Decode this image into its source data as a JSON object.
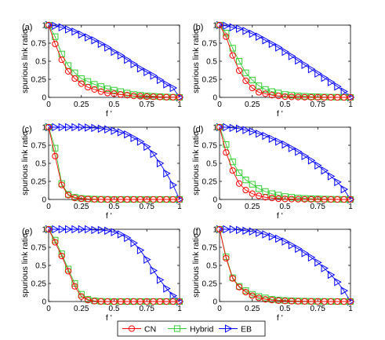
{
  "chart_data": {
    "type": "line",
    "x_axis_label": "f '",
    "y_axis_label": "spurious link ratio",
    "xlim": [
      0,
      1
    ],
    "ylim": [
      0,
      1
    ],
    "x_ticks": [
      "0",
      "0.25",
      "0.5",
      "0.75",
      "1"
    ],
    "y_ticks": [
      "0",
      "0.25",
      "0.5",
      "0.75",
      "1"
    ],
    "grid": false,
    "legend": {
      "placement": "bottom-center",
      "entries": [
        {
          "name": "CN",
          "color": "#ff0000",
          "marker": "circle"
        },
        {
          "name": "Hybrid",
          "color": "#33cc33",
          "marker": "square"
        },
        {
          "name": "EB",
          "color": "#0000ff",
          "marker": "triangle-right"
        }
      ]
    },
    "panels": [
      {
        "label": "(a)",
        "x": [
          0,
          0.05,
          0.1,
          0.15,
          0.2,
          0.25,
          0.3,
          0.35,
          0.4,
          0.45,
          0.5,
          0.55,
          0.6,
          0.65,
          0.7,
          0.75,
          0.8,
          0.85,
          0.9,
          0.95,
          1
        ],
        "series": [
          {
            "name": "CN",
            "values": [
              1,
              0.74,
              0.52,
              0.36,
              0.26,
              0.19,
              0.14,
              0.11,
              0.08,
              0.06,
              0.05,
              0.04,
              0.03,
              0.02,
              0.015,
              0.01,
              0.008,
              0.005,
              0.003,
              0.002,
              0
            ]
          },
          {
            "name": "Hybrid",
            "values": [
              1,
              0.84,
              0.6,
              0.44,
              0.34,
              0.26,
              0.22,
              0.18,
              0.15,
              0.12,
              0.1,
              0.08,
              0.06,
              0.04,
              0.03,
              0.02,
              0.015,
              0.01,
              0.005,
              0.002,
              0
            ]
          },
          {
            "name": "EB",
            "values": [
              1,
              0.99,
              0.97,
              0.94,
              0.91,
              0.87,
              0.83,
              0.79,
              0.74,
              0.69,
              0.63,
              0.58,
              0.52,
              0.46,
              0.4,
              0.35,
              0.3,
              0.24,
              0.18,
              0.13,
              0
            ]
          }
        ]
      },
      {
        "label": "(b)",
        "x": [
          0,
          0.05,
          0.1,
          0.15,
          0.2,
          0.25,
          0.3,
          0.35,
          0.4,
          0.45,
          0.5,
          0.55,
          0.6,
          0.65,
          0.7,
          0.75,
          0.8,
          0.85,
          0.9,
          0.95,
          1
        ],
        "series": [
          {
            "name": "CN",
            "values": [
              1,
              0.84,
              0.58,
              0.37,
              0.23,
              0.13,
              0.07,
              0.05,
              0.03,
              0.02,
              0.01,
              0.007,
              0.004,
              0.002,
              0.001,
              0.001,
              0,
              0,
              0,
              0,
              0
            ]
          },
          {
            "name": "Hybrid",
            "values": [
              1,
              0.89,
              0.68,
              0.5,
              0.34,
              0.24,
              0.16,
              0.11,
              0.08,
              0.06,
              0.04,
              0.03,
              0.02,
              0.015,
              0.01,
              0.008,
              0.005,
              0.003,
              0.002,
              0.001,
              0
            ]
          },
          {
            "name": "EB",
            "values": [
              1,
              0.99,
              0.97,
              0.95,
              0.92,
              0.88,
              0.84,
              0.79,
              0.74,
              0.69,
              0.63,
              0.57,
              0.51,
              0.45,
              0.39,
              0.33,
              0.27,
              0.21,
              0.15,
              0.08,
              0
            ]
          }
        ]
      },
      {
        "label": "(c)",
        "x": [
          0,
          0.05,
          0.1,
          0.15,
          0.2,
          0.25,
          0.3,
          0.35,
          0.4,
          0.45,
          0.5,
          0.55,
          0.6,
          0.65,
          0.7,
          0.75,
          0.8,
          0.85,
          0.9,
          0.95,
          1
        ],
        "series": [
          {
            "name": "CN",
            "values": [
              1,
              0.6,
              0.2,
              0.06,
              0.02,
              0.01,
              0.005,
              0.002,
              0,
              0,
              0,
              0,
              0,
              0,
              0,
              0,
              0,
              0,
              0,
              0,
              0
            ]
          },
          {
            "name": "Hybrid",
            "values": [
              1,
              0.71,
              0.22,
              0.07,
              0.03,
              0.015,
              0.008,
              0.004,
              0.002,
              0.001,
              0,
              0,
              0,
              0,
              0,
              0,
              0,
              0,
              0,
              0,
              0
            ]
          },
          {
            "name": "EB",
            "values": [
              1,
              1,
              1,
              1,
              1,
              1,
              0.995,
              0.99,
              0.98,
              0.97,
              0.95,
              0.93,
              0.9,
              0.85,
              0.8,
              0.73,
              0.63,
              0.5,
              0.36,
              0.2,
              0
            ]
          }
        ]
      },
      {
        "label": "(d)",
        "x": [
          0,
          0.05,
          0.1,
          0.15,
          0.2,
          0.25,
          0.3,
          0.35,
          0.4,
          0.45,
          0.5,
          0.55,
          0.6,
          0.65,
          0.7,
          0.75,
          0.8,
          0.85,
          0.9,
          0.95,
          1
        ],
        "series": [
          {
            "name": "CN",
            "values": [
              1,
              0.65,
              0.4,
              0.22,
              0.13,
              0.08,
              0.05,
              0.03,
              0.02,
              0.01,
              0.007,
              0.005,
              0.003,
              0.002,
              0.001,
              0.001,
              0,
              0,
              0,
              0,
              0
            ]
          },
          {
            "name": "Hybrid",
            "values": [
              1,
              0.76,
              0.52,
              0.37,
              0.27,
              0.21,
              0.15,
              0.11,
              0.08,
              0.06,
              0.04,
              0.03,
              0.02,
              0.015,
              0.01,
              0.008,
              0.005,
              0.003,
              0.002,
              0.001,
              0
            ]
          },
          {
            "name": "EB",
            "values": [
              1,
              1,
              0.99,
              0.98,
              0.96,
              0.94,
              0.91,
              0.88,
              0.84,
              0.8,
              0.76,
              0.71,
              0.66,
              0.6,
              0.54,
              0.47,
              0.4,
              0.32,
              0.24,
              0.14,
              0
            ]
          }
        ]
      },
      {
        "label": "(e)",
        "x": [
          0,
          0.05,
          0.1,
          0.15,
          0.2,
          0.25,
          0.3,
          0.35,
          0.4,
          0.45,
          0.5,
          0.55,
          0.6,
          0.65,
          0.7,
          0.75,
          0.8,
          0.85,
          0.9,
          0.95,
          1
        ],
        "series": [
          {
            "name": "CN",
            "values": [
              1,
              0.82,
              0.63,
              0.42,
              0.21,
              0.07,
              0.02,
              0.005,
              0.001,
              0,
              0,
              0,
              0,
              0,
              0,
              0,
              0,
              0,
              0,
              0,
              0
            ]
          },
          {
            "name": "Hybrid",
            "values": [
              1,
              0.85,
              0.66,
              0.45,
              0.25,
              0.1,
              0.03,
              0.01,
              0.003,
              0.001,
              0,
              0,
              0,
              0,
              0,
              0,
              0,
              0,
              0,
              0,
              0
            ]
          },
          {
            "name": "EB",
            "values": [
              1,
              1,
              1,
              1,
              1,
              1,
              1,
              0.99,
              0.99,
              0.98,
              0.96,
              0.93,
              0.88,
              0.81,
              0.71,
              0.58,
              0.43,
              0.3,
              0.18,
              0.08,
              0
            ]
          }
        ]
      },
      {
        "label": "(f)",
        "x": [
          0,
          0.05,
          0.1,
          0.15,
          0.2,
          0.25,
          0.3,
          0.35,
          0.4,
          0.45,
          0.5,
          0.55,
          0.6,
          0.65,
          0.7,
          0.75,
          0.8,
          0.85,
          0.9,
          0.95,
          1
        ],
        "series": [
          {
            "name": "CN",
            "values": [
              1,
              0.6,
              0.32,
              0.2,
              0.13,
              0.08,
              0.05,
              0.03,
              0.02,
              0.012,
              0.008,
              0.005,
              0.003,
              0.002,
              0.001,
              0.001,
              0,
              0,
              0,
              0,
              0
            ]
          },
          {
            "name": "Hybrid",
            "values": [
              1,
              0.62,
              0.33,
              0.21,
              0.15,
              0.1,
              0.07,
              0.05,
              0.03,
              0.02,
              0.015,
              0.01,
              0.007,
              0.005,
              0.003,
              0.002,
              0.001,
              0.001,
              0,
              0,
              0
            ]
          },
          {
            "name": "EB",
            "values": [
              1,
              1,
              1,
              0.99,
              0.98,
              0.97,
              0.95,
              0.93,
              0.9,
              0.87,
              0.83,
              0.78,
              0.73,
              0.67,
              0.61,
              0.54,
              0.46,
              0.37,
              0.27,
              0.15,
              0
            ]
          }
        ]
      }
    ]
  }
}
